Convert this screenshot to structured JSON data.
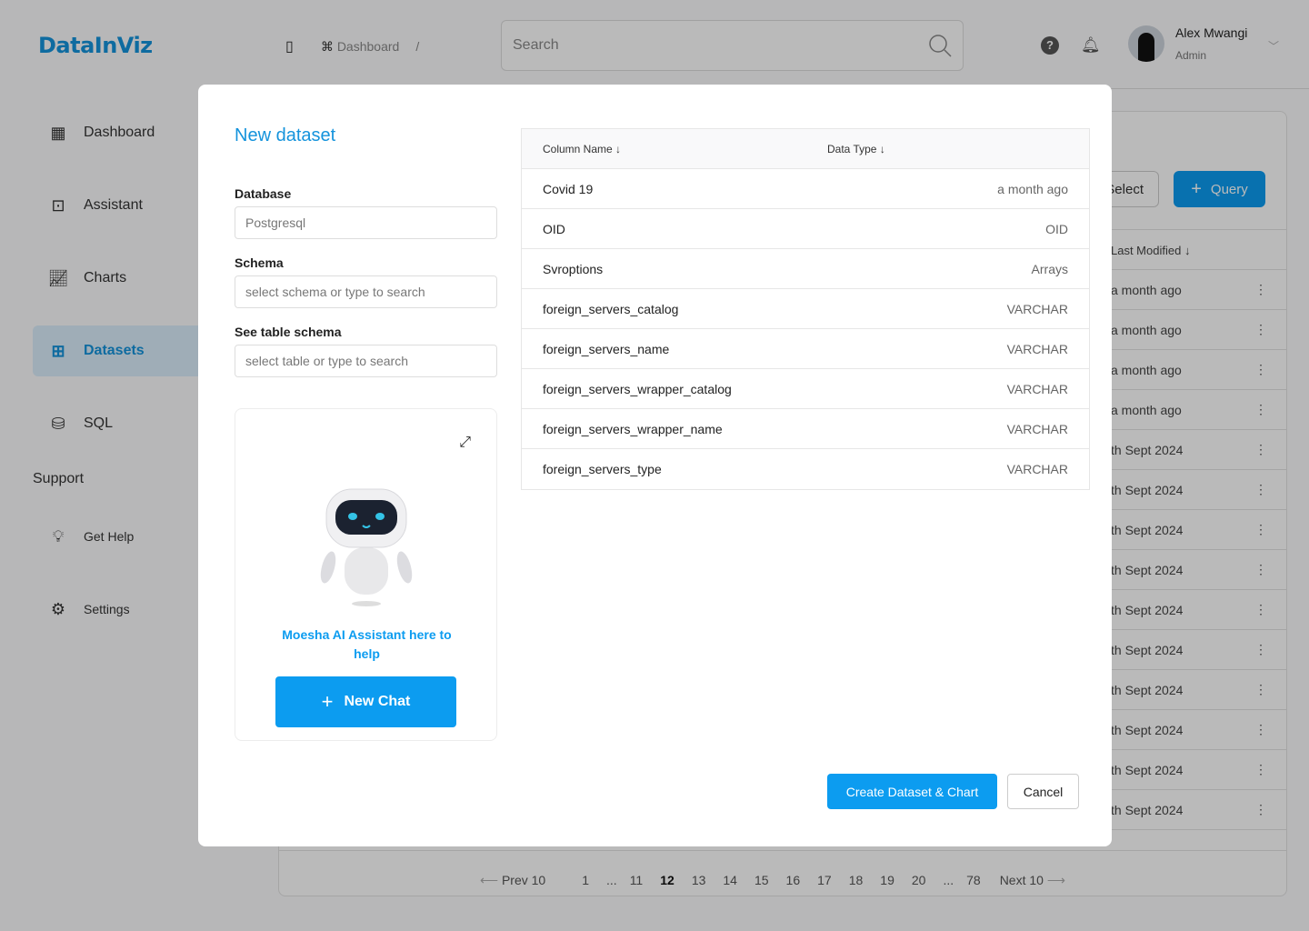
{
  "app": {
    "logo": "DataInViz"
  },
  "header": {
    "breadcrumb": "Dashboard",
    "separator": "/",
    "search_placeholder": "Search",
    "user_name": "Alex Mwangi",
    "user_role": "Admin"
  },
  "sidebar": {
    "items": [
      {
        "label": "Dashboard",
        "icon": "dashboard-icon"
      },
      {
        "label": "Assistant",
        "icon": "robot-icon"
      },
      {
        "label": "Charts",
        "icon": "chart-icon"
      },
      {
        "label": "Datasets",
        "icon": "datasets-icon",
        "active": true
      },
      {
        "label": "SQL",
        "icon": "sql-icon"
      }
    ],
    "support_heading": "Support",
    "support_items": [
      {
        "label": "Get Help"
      },
      {
        "label": "Settings"
      }
    ]
  },
  "background": {
    "select_label": "Select",
    "query_label": "Query",
    "col_header": "Last Modified",
    "rows": [
      "a month ago",
      "a month ago",
      "a month ago",
      "a month ago",
      "th Sept 2024",
      "th Sept 2024",
      "th Sept 2024",
      "th Sept 2024",
      "th Sept 2024",
      "th Sept 2024",
      "th Sept 2024",
      "th Sept 2024",
      "th Sept 2024",
      "th Sept 2024"
    ],
    "pagination": {
      "prev": "Prev 10",
      "next": "Next 10",
      "pages": [
        "1",
        "...",
        "11",
        "12",
        "13",
        "14",
        "15",
        "16",
        "17",
        "18",
        "19",
        "20",
        "...",
        "78"
      ],
      "current": "12"
    }
  },
  "modal": {
    "title": "New dataset",
    "database_label": "Database",
    "database_value": "Postgresql",
    "schema_label": "Schema",
    "schema_placeholder": "select schema or type to search",
    "table_label": "See table schema",
    "table_placeholder": "select table or type to search",
    "assistant_text": "Moesha AI Assistant here to help",
    "new_chat": "New Chat",
    "table": {
      "col_name": "Column Name",
      "col_type": "Data Type",
      "rows": [
        {
          "name": "Covid 19",
          "type": "a month ago"
        },
        {
          "name": "OID",
          "type": "OID"
        },
        {
          "name": "Svroptions",
          "type": "Arrays"
        },
        {
          "name": "foreign_servers_catalog",
          "type": "VARCHAR"
        },
        {
          "name": "foreign_servers_name",
          "type": "VARCHAR"
        },
        {
          "name": "foreign_servers_wrapper_catalog",
          "type": "VARCHAR"
        },
        {
          "name": "foreign_servers_wrapper_name",
          "type": "VARCHAR"
        },
        {
          "name": "foreign_servers_type",
          "type": "VARCHAR"
        }
      ]
    },
    "create_label": "Create Dataset & Chart",
    "cancel_label": "Cancel"
  },
  "colors": {
    "accent": "#0c9cf0",
    "brand": "#1493dc"
  }
}
